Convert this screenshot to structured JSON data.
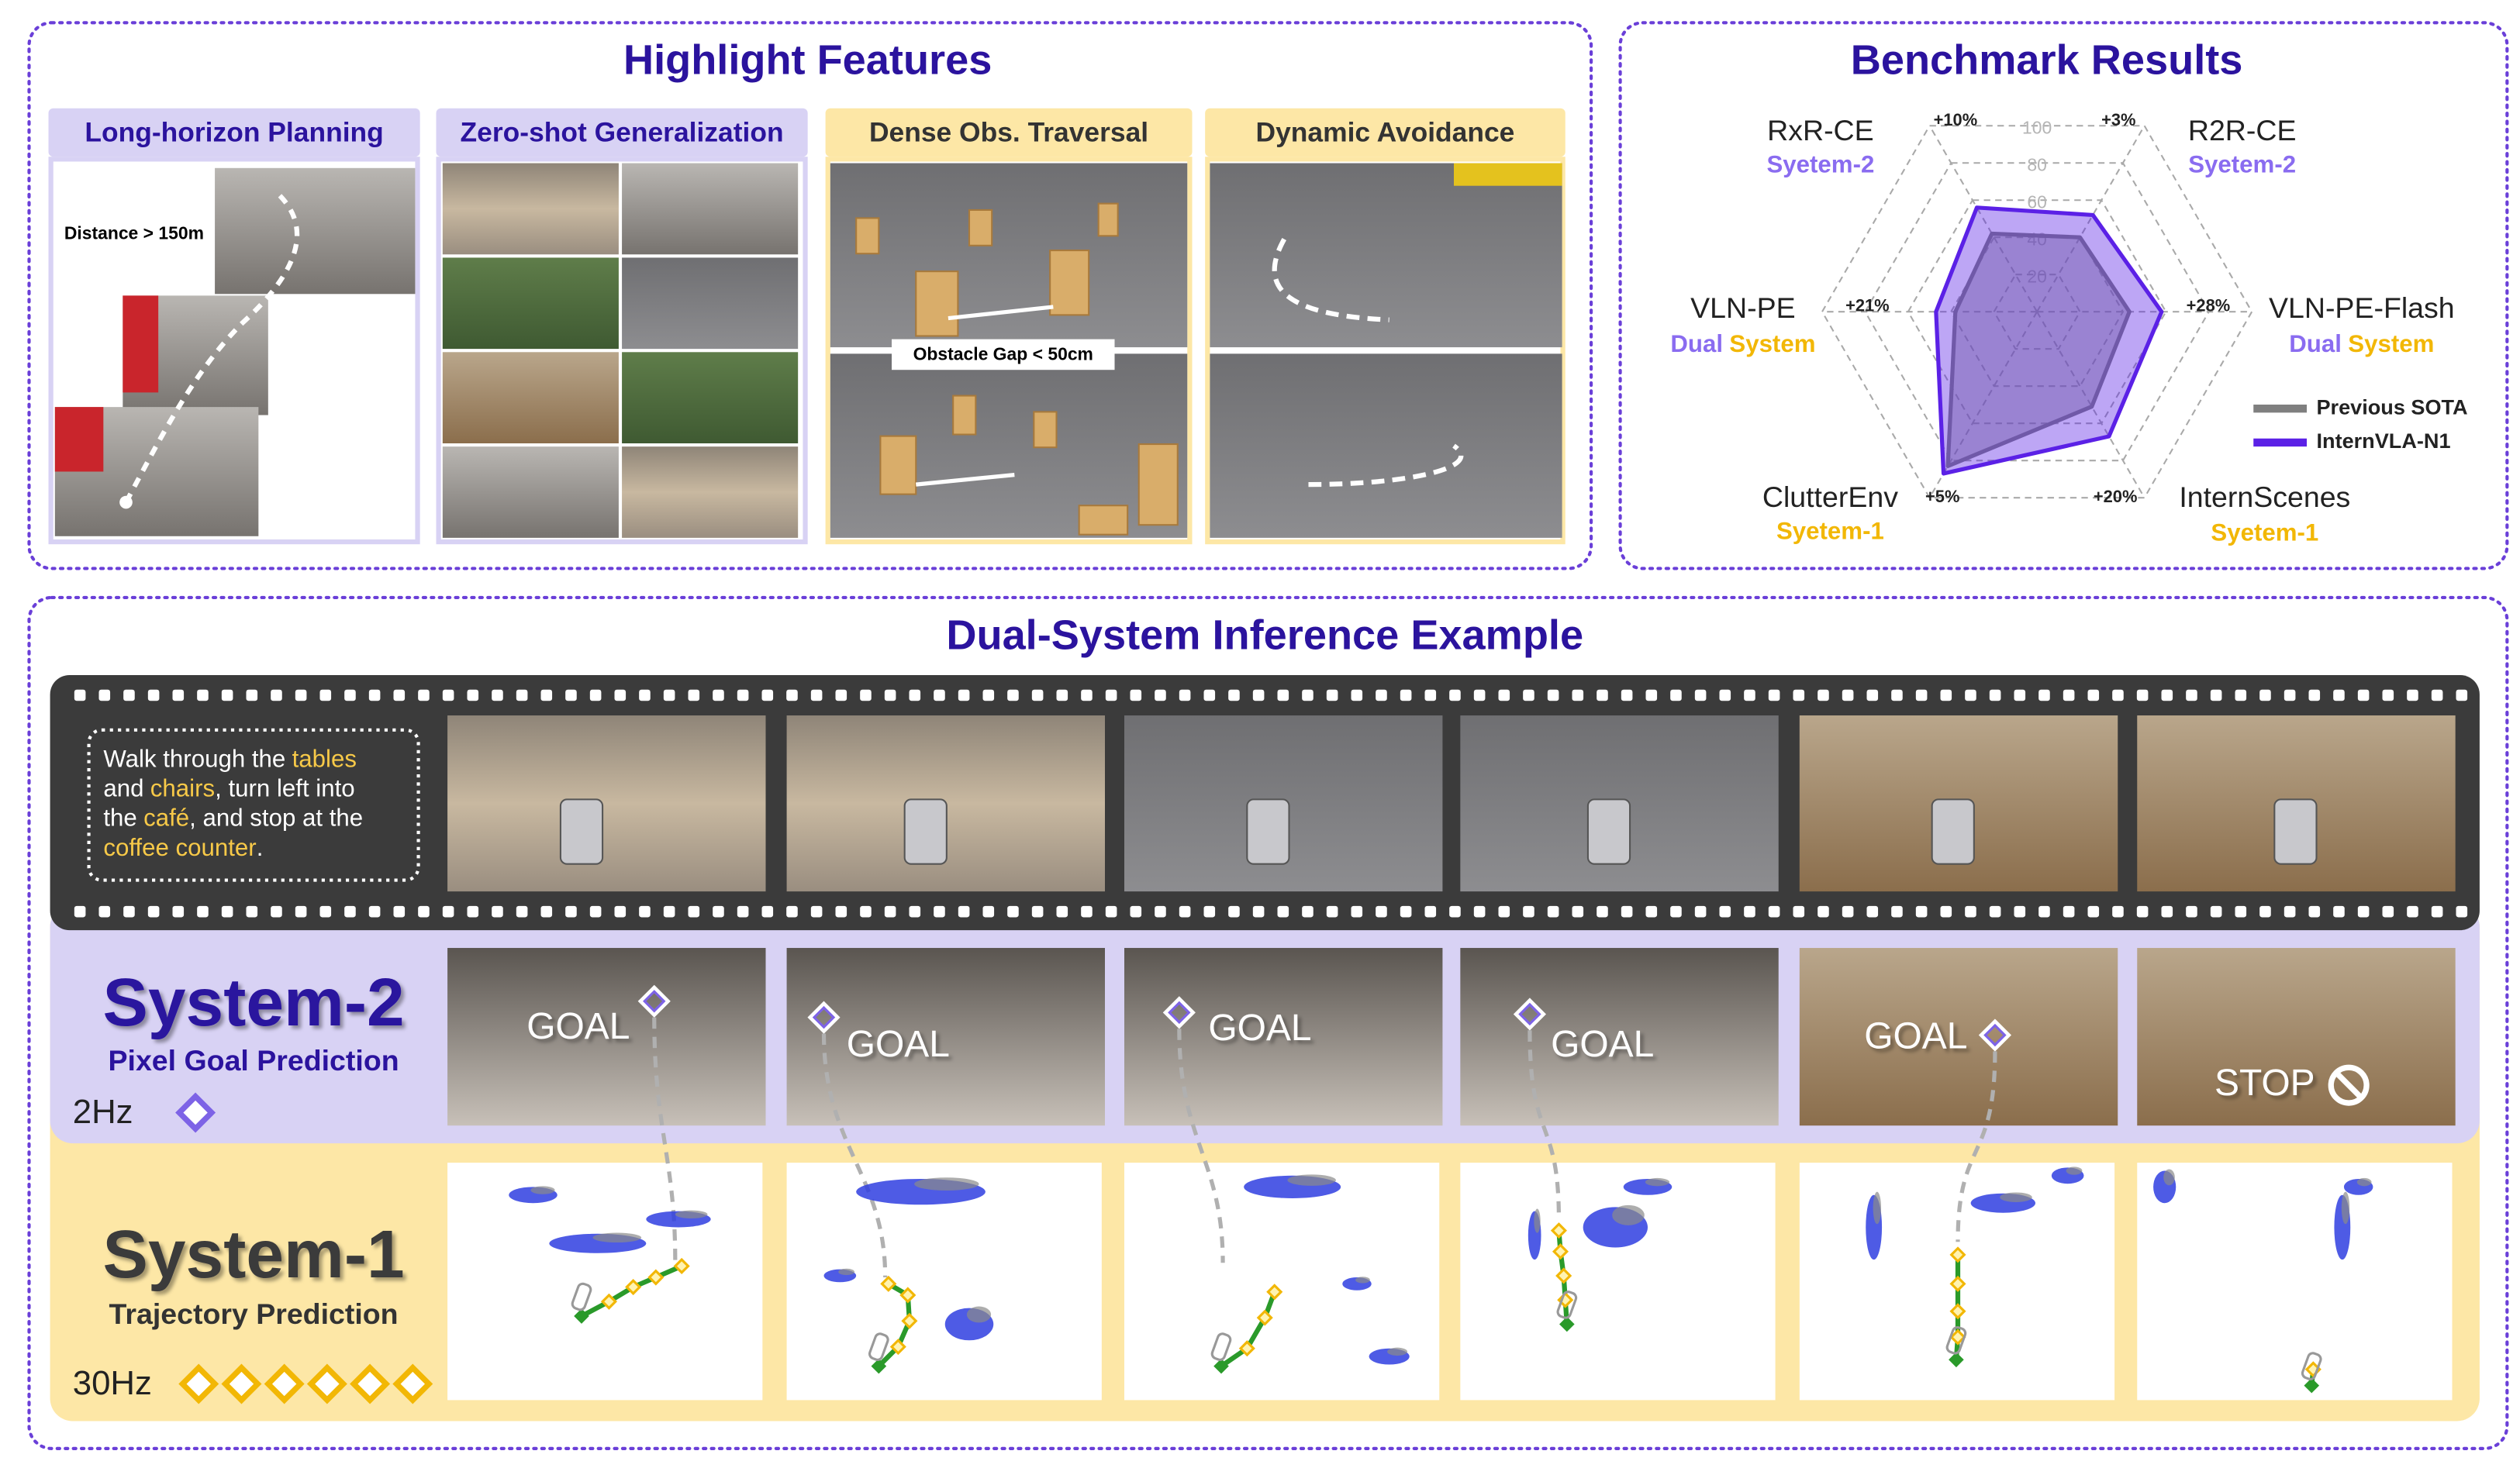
{
  "highlight": {
    "title": "Highlight Features",
    "features": [
      {
        "label": "Long-horizon Planning"
      },
      {
        "label": "Zero-shot Generalization"
      },
      {
        "label": "Dense Obs. Traversal"
      },
      {
        "label": "Dynamic Avoidance"
      }
    ],
    "annotations": [
      "Distance > 150m",
      "Obstacle Gap < 50cm"
    ]
  },
  "benchmark": {
    "title": "Benchmark Results",
    "chart": {
      "type": "radar",
      "axes": [
        {
          "name": "RxR-CE",
          "system": [
            {
              "text": "Syetem-2",
              "color": "#8a6cf0"
            }
          ],
          "gain": "+10%"
        },
        {
          "name": "R2R-CE",
          "system": [
            {
              "text": "Syetem-2",
              "color": "#8a6cf0"
            }
          ],
          "gain": "+3%"
        },
        {
          "name": "VLN-PE-Flash",
          "system": [
            {
              "text": "Dual",
              "color": "#8a6cf0"
            },
            {
              "text": "System",
              "color": "#f2b705"
            }
          ],
          "gain": "+28%"
        },
        {
          "name": "InternScenes",
          "system": [
            {
              "text": "Syetem-1",
              "color": "#f2b705"
            }
          ],
          "gain": "+20%"
        },
        {
          "name": "ClutterEnv",
          "system": [
            {
              "text": "Syetem-1",
              "color": "#f2b705"
            }
          ],
          "gain": "+5%"
        },
        {
          "name": "VLN-PE",
          "system": [
            {
              "text": "Dual",
              "color": "#8a6cf0"
            },
            {
              "text": "System",
              "color": "#f2b705"
            }
          ],
          "gain": "+21%"
        }
      ],
      "rlim": [
        0,
        100
      ],
      "rticks": [
        20,
        40,
        60,
        80,
        100
      ],
      "series": [
        {
          "name": "Previous SOTA",
          "color": "#7f7f7f",
          "values": [
            42,
            40,
            43,
            51,
            83,
            38
          ]
        },
        {
          "name": "InternVLA-N1",
          "color": "#5b21e6",
          "values": [
            56,
            52,
            58,
            67,
            87,
            47
          ]
        }
      ]
    }
  },
  "inference": {
    "title": "Dual-System Inference Example",
    "instruction": [
      [
        {
          "text": "Walk through the",
          "hl": false
        },
        {
          "text": "tables",
          "hl": true
        }
      ],
      [
        {
          "text": "and",
          "hl": false
        },
        {
          "text": "chairs",
          "hl": true
        },
        {
          "text": ", turn left into",
          "hl": false
        }
      ],
      [
        {
          "text": "the",
          "hl": false
        },
        {
          "text": "café",
          "hl": true
        },
        {
          "text": ", and stop at the",
          "hl": false
        }
      ],
      [
        {
          "text": "coffee counter",
          "hl": true
        },
        {
          "text": ".",
          "hl": false
        }
      ]
    ],
    "system2": {
      "title": "System-2",
      "subtitle": "Pixel Goal Prediction",
      "rate": "2Hz",
      "outputs": [
        "GOAL",
        "GOAL",
        "GOAL",
        "GOAL",
        "GOAL",
        "STOP"
      ]
    },
    "system1": {
      "title": "System-1",
      "subtitle": "Trajectory Prediction",
      "rate": "30Hz"
    }
  }
}
